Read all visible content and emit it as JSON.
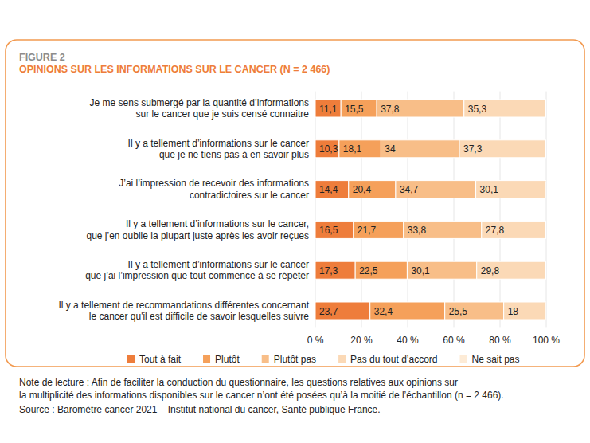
{
  "chart_data": {
    "type": "bar",
    "orientation": "horizontal",
    "stacked": true,
    "data_labels": true,
    "grid": true,
    "legend": "bottom",
    "title": "FIGURE 2",
    "subtitle": "OPINIONS SUR LES INFORMATIONS SUR LE CANCER (N = 2 466)",
    "categories": [
      "Je me sens submergé par la quantité d’informations\nsur le cancer que je suis censé connaitre",
      "Il y a tellement d’informations sur le cancer\nque je ne tiens pas à en savoir plus",
      "J’ai l’impression de recevoir des informations\ncontradictoires sur le cancer",
      "Il y a tellement d’informations sur le cancer,\nque j’en oublie la plupart juste après les avoir reçues",
      "Il y a tellement d’informations sur le cancer\nque j’ai l’impression que tout commence à se répéter",
      "Il y a tellement de recommandations différentes concernant\nle cancer qu'il est difficile de savoir lesquelles suivre"
    ],
    "series": [
      {
        "name": "Tout à fait",
        "color": "#ee7d3b",
        "values": [
          11.1,
          10.3,
          14.4,
          16.5,
          17.3,
          23.7
        ],
        "value_labels": [
          "11,1",
          "10,3",
          "14,4",
          "16,5",
          "17,3",
          "23,7"
        ]
      },
      {
        "name": "Plutôt",
        "color": "#f5a05a",
        "values": [
          15.5,
          18.1,
          20.4,
          21.7,
          22.5,
          32.4
        ],
        "value_labels": [
          "15,5",
          "18,1",
          "20,4",
          "21,7",
          "22,5",
          "32,4"
        ]
      },
      {
        "name": "Plutôt pas",
        "color": "#f8be88",
        "values": [
          37.8,
          34,
          34.7,
          33.8,
          30.1,
          25.5
        ],
        "value_labels": [
          "37,8",
          "34",
          "34,7",
          "33,8",
          "30,1",
          "25,5"
        ]
      },
      {
        "name": "Pas du tout d’accord",
        "color": "#fbd9b6",
        "values": [
          35.3,
          37.3,
          30.1,
          27.8,
          29.8,
          18
        ],
        "value_labels": [
          "35,3",
          "37,3",
          "30,1",
          "27,8",
          "29,8",
          "18"
        ]
      },
      {
        "name": "Ne sait pas",
        "color": "#fdebd6",
        "data_labels": false,
        "values": [
          0.3,
          0.3,
          0.4,
          0.2,
          0.3,
          0.4
        ]
      }
    ],
    "xlim": [
      0,
      100
    ],
    "xticks": [
      {
        "value": 0,
        "label": "0 %"
      },
      {
        "value": 20,
        "label": "20 %"
      },
      {
        "value": 40,
        "label": "40 %"
      },
      {
        "value": 60,
        "label": "60 %"
      },
      {
        "value": 80,
        "label": "80 %"
      },
      {
        "value": 100,
        "label": "100 %"
      }
    ],
    "note": "Note de lecture : Afin de faciliter la conduction du questionnaire, les questions relatives aux opinions sur\nla multiplicité des informations disponibles sur le cancer n’ont été posées qu’à la moitié de l’échantillon (n = 2 466).",
    "source": "Source : Baromètre cancer 2021 – Institut national du cancer, Santé publique France."
  }
}
